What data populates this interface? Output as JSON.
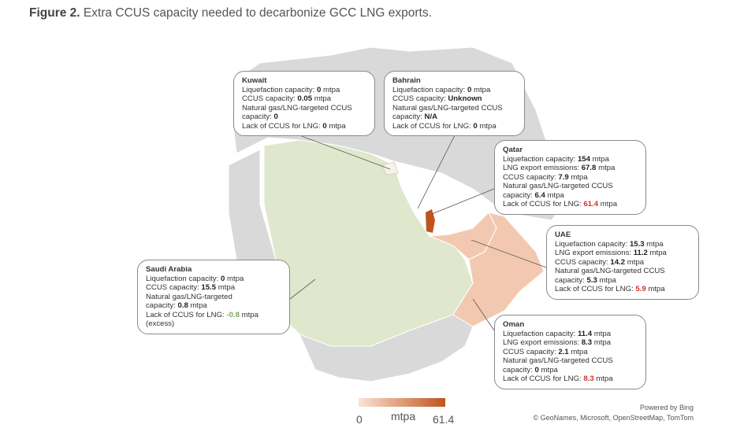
{
  "figure": {
    "label": "Figure 2.",
    "caption": "Extra CCUS capacity needed to decarbonize GCC LNG exports."
  },
  "colors": {
    "saudi": "#dfe8cc",
    "oman_uae": "#f2c9b0",
    "qatar": "#c0541e",
    "other": "#d9d9d9",
    "highlight": "#d32f2f",
    "excess": "#7fa35a"
  },
  "countries": [
    {
      "name": "Kuwait",
      "lines": [
        {
          "label": "Liquefaction capacity: ",
          "value": "0",
          "unit": " mtpa"
        },
        {
          "label": "CCUS capacity: ",
          "value": "0.05",
          "unit": " mtpa"
        },
        {
          "label": "Natural gas/LNG-targeted CCUS",
          "value": "",
          "unit": ""
        },
        {
          "label": "capacity: ",
          "value": "0",
          "unit": ""
        },
        {
          "label": "Lack of CCUS for LNG: ",
          "value": "0",
          "unit": " mtpa"
        }
      ]
    },
    {
      "name": "Bahrain",
      "lines": [
        {
          "label": "Liquefaction capacity: ",
          "value": "0",
          "unit": " mtpa"
        },
        {
          "label": "CCUS capacity: ",
          "value": "Unknown",
          "unit": ""
        },
        {
          "label": "Natural gas/LNG-targeted CCUS",
          "value": "",
          "unit": ""
        },
        {
          "label": "capacity: ",
          "value": "N/A",
          "unit": ""
        },
        {
          "label": "Lack of CCUS for LNG: ",
          "value": "0",
          "unit": " mtpa"
        }
      ]
    },
    {
      "name": "Qatar",
      "lines": [
        {
          "label": "Liquefaction capacity: ",
          "value": "154",
          "unit": " mtpa"
        },
        {
          "label": "LNG export emissions: ",
          "value": "67.8",
          "unit": " mtpa"
        },
        {
          "label": "CCUS capacity: ",
          "value": "7.9",
          "unit": " mtpa"
        },
        {
          "label": "Natural gas/LNG-targeted CCUS",
          "value": "",
          "unit": ""
        },
        {
          "label": "capacity: ",
          "value": "6.4",
          "unit": " mtpa"
        },
        {
          "label": "Lack of CCUS for LNG: ",
          "value": "61.4",
          "unit": " mtpa",
          "style": "hl"
        }
      ]
    },
    {
      "name": "UAE",
      "lines": [
        {
          "label": "Liquefaction capacity: ",
          "value": "15.3",
          "unit": " mtpa"
        },
        {
          "label": "LNG export emissions: ",
          "value": "11.2",
          "unit": " mtpa"
        },
        {
          "label": "CCUS capacity: ",
          "value": "14.2",
          "unit": " mtpa"
        },
        {
          "label": "Natural gas/LNG-targeted CCUS",
          "value": "",
          "unit": ""
        },
        {
          "label": "capacity: ",
          "value": "5.3",
          "unit": " mtpa"
        },
        {
          "label": "Lack of CCUS for LNG: ",
          "value": "5.9",
          "unit": " mtpa",
          "style": "hl"
        }
      ]
    },
    {
      "name": "Oman",
      "lines": [
        {
          "label": "Liquefaction capacity: ",
          "value": "11.4",
          "unit": " mtpa"
        },
        {
          "label": "LNG export emissions: ",
          "value": "8.3",
          "unit": " mtpa"
        },
        {
          "label": "CCUS capacity: ",
          "value": "2.1",
          "unit": " mtpa"
        },
        {
          "label": "Natural gas/LNG-targeted CCUS",
          "value": "",
          "unit": ""
        },
        {
          "label": "capacity: ",
          "value": "0",
          "unit": " mtpa"
        },
        {
          "label": "Lack of CCUS for LNG: ",
          "value": "8.3",
          "unit": " mtpa",
          "style": "hl"
        }
      ]
    },
    {
      "name": "Saudi Arabia",
      "lines": [
        {
          "label": "Liquefaction capacity: ",
          "value": "0",
          "unit": " mtpa"
        },
        {
          "label": "CCUS capacity: ",
          "value": "15.5",
          "unit": " mtpa"
        },
        {
          "label": "Natural gas/LNG-targeted",
          "value": "",
          "unit": ""
        },
        {
          "label": "capacity: ",
          "value": "0.8",
          "unit": " mtpa"
        },
        {
          "label": "Lack of CCUS for LNG: ",
          "value": "-0.8",
          "unit": " mtpa",
          "style": "gr"
        },
        {
          "label": "(excess)",
          "value": "",
          "unit": ""
        }
      ]
    }
  ],
  "legend": {
    "min": "0",
    "unit": "mtpa",
    "max": "61.4"
  },
  "attribution": {
    "powered": "Powered by Bing",
    "credits": "© GeoNames, Microsoft, OpenStreetMap, TomTom"
  }
}
